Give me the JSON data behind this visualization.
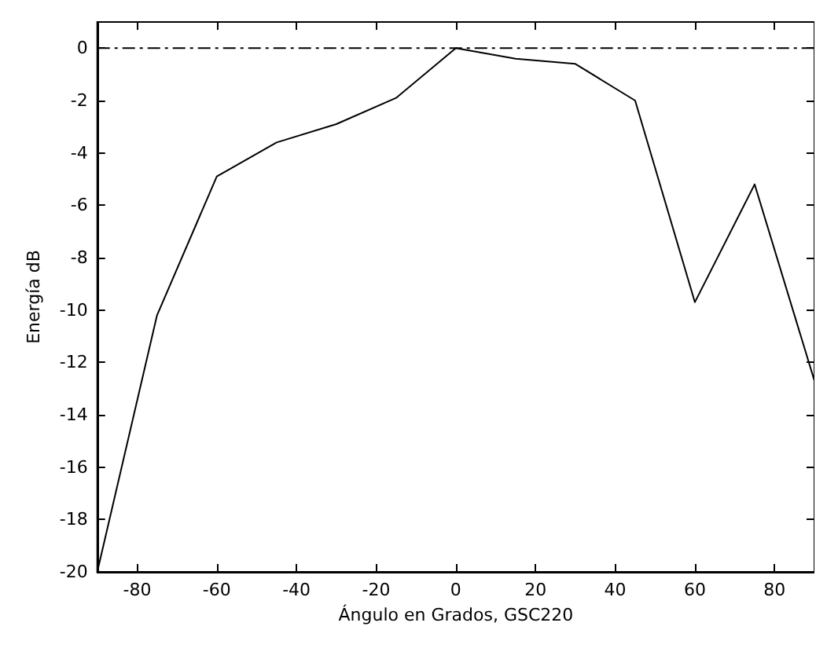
{
  "chart_data": {
    "type": "line",
    "xlabel": "Ángulo en Grados, GSC220",
    "ylabel": "Energía dB",
    "x": [
      -90,
      -75,
      -60,
      -45,
      -30,
      -15,
      0,
      15,
      30,
      45,
      60,
      75,
      90
    ],
    "series": [
      {
        "color": "#000000",
        "line_style": "solid",
        "values": [
          -20,
          -10.2,
          -4.9,
          -3.6,
          -2.9,
          -1.9,
          0,
          -0.4,
          -0.6,
          -2.0,
          -9.7,
          -5.2,
          -12.7
        ]
      },
      {
        "color": "#000000",
        "line_style": "dashed",
        "values": [
          0,
          0,
          0,
          0,
          0,
          0,
          0,
          0,
          0,
          0,
          0,
          0,
          0
        ]
      }
    ],
    "xlim": [
      -90,
      90
    ],
    "xticks": [
      -80,
      -60,
      -40,
      -20,
      0,
      20,
      40,
      60,
      80
    ],
    "ylim": [
      -20,
      1
    ],
    "yticks": [
      -20,
      -18,
      -16,
      -14,
      -12,
      -10,
      -8,
      -6,
      -4,
      -2,
      0
    ],
    "marker": "none",
    "grid": false
  }
}
